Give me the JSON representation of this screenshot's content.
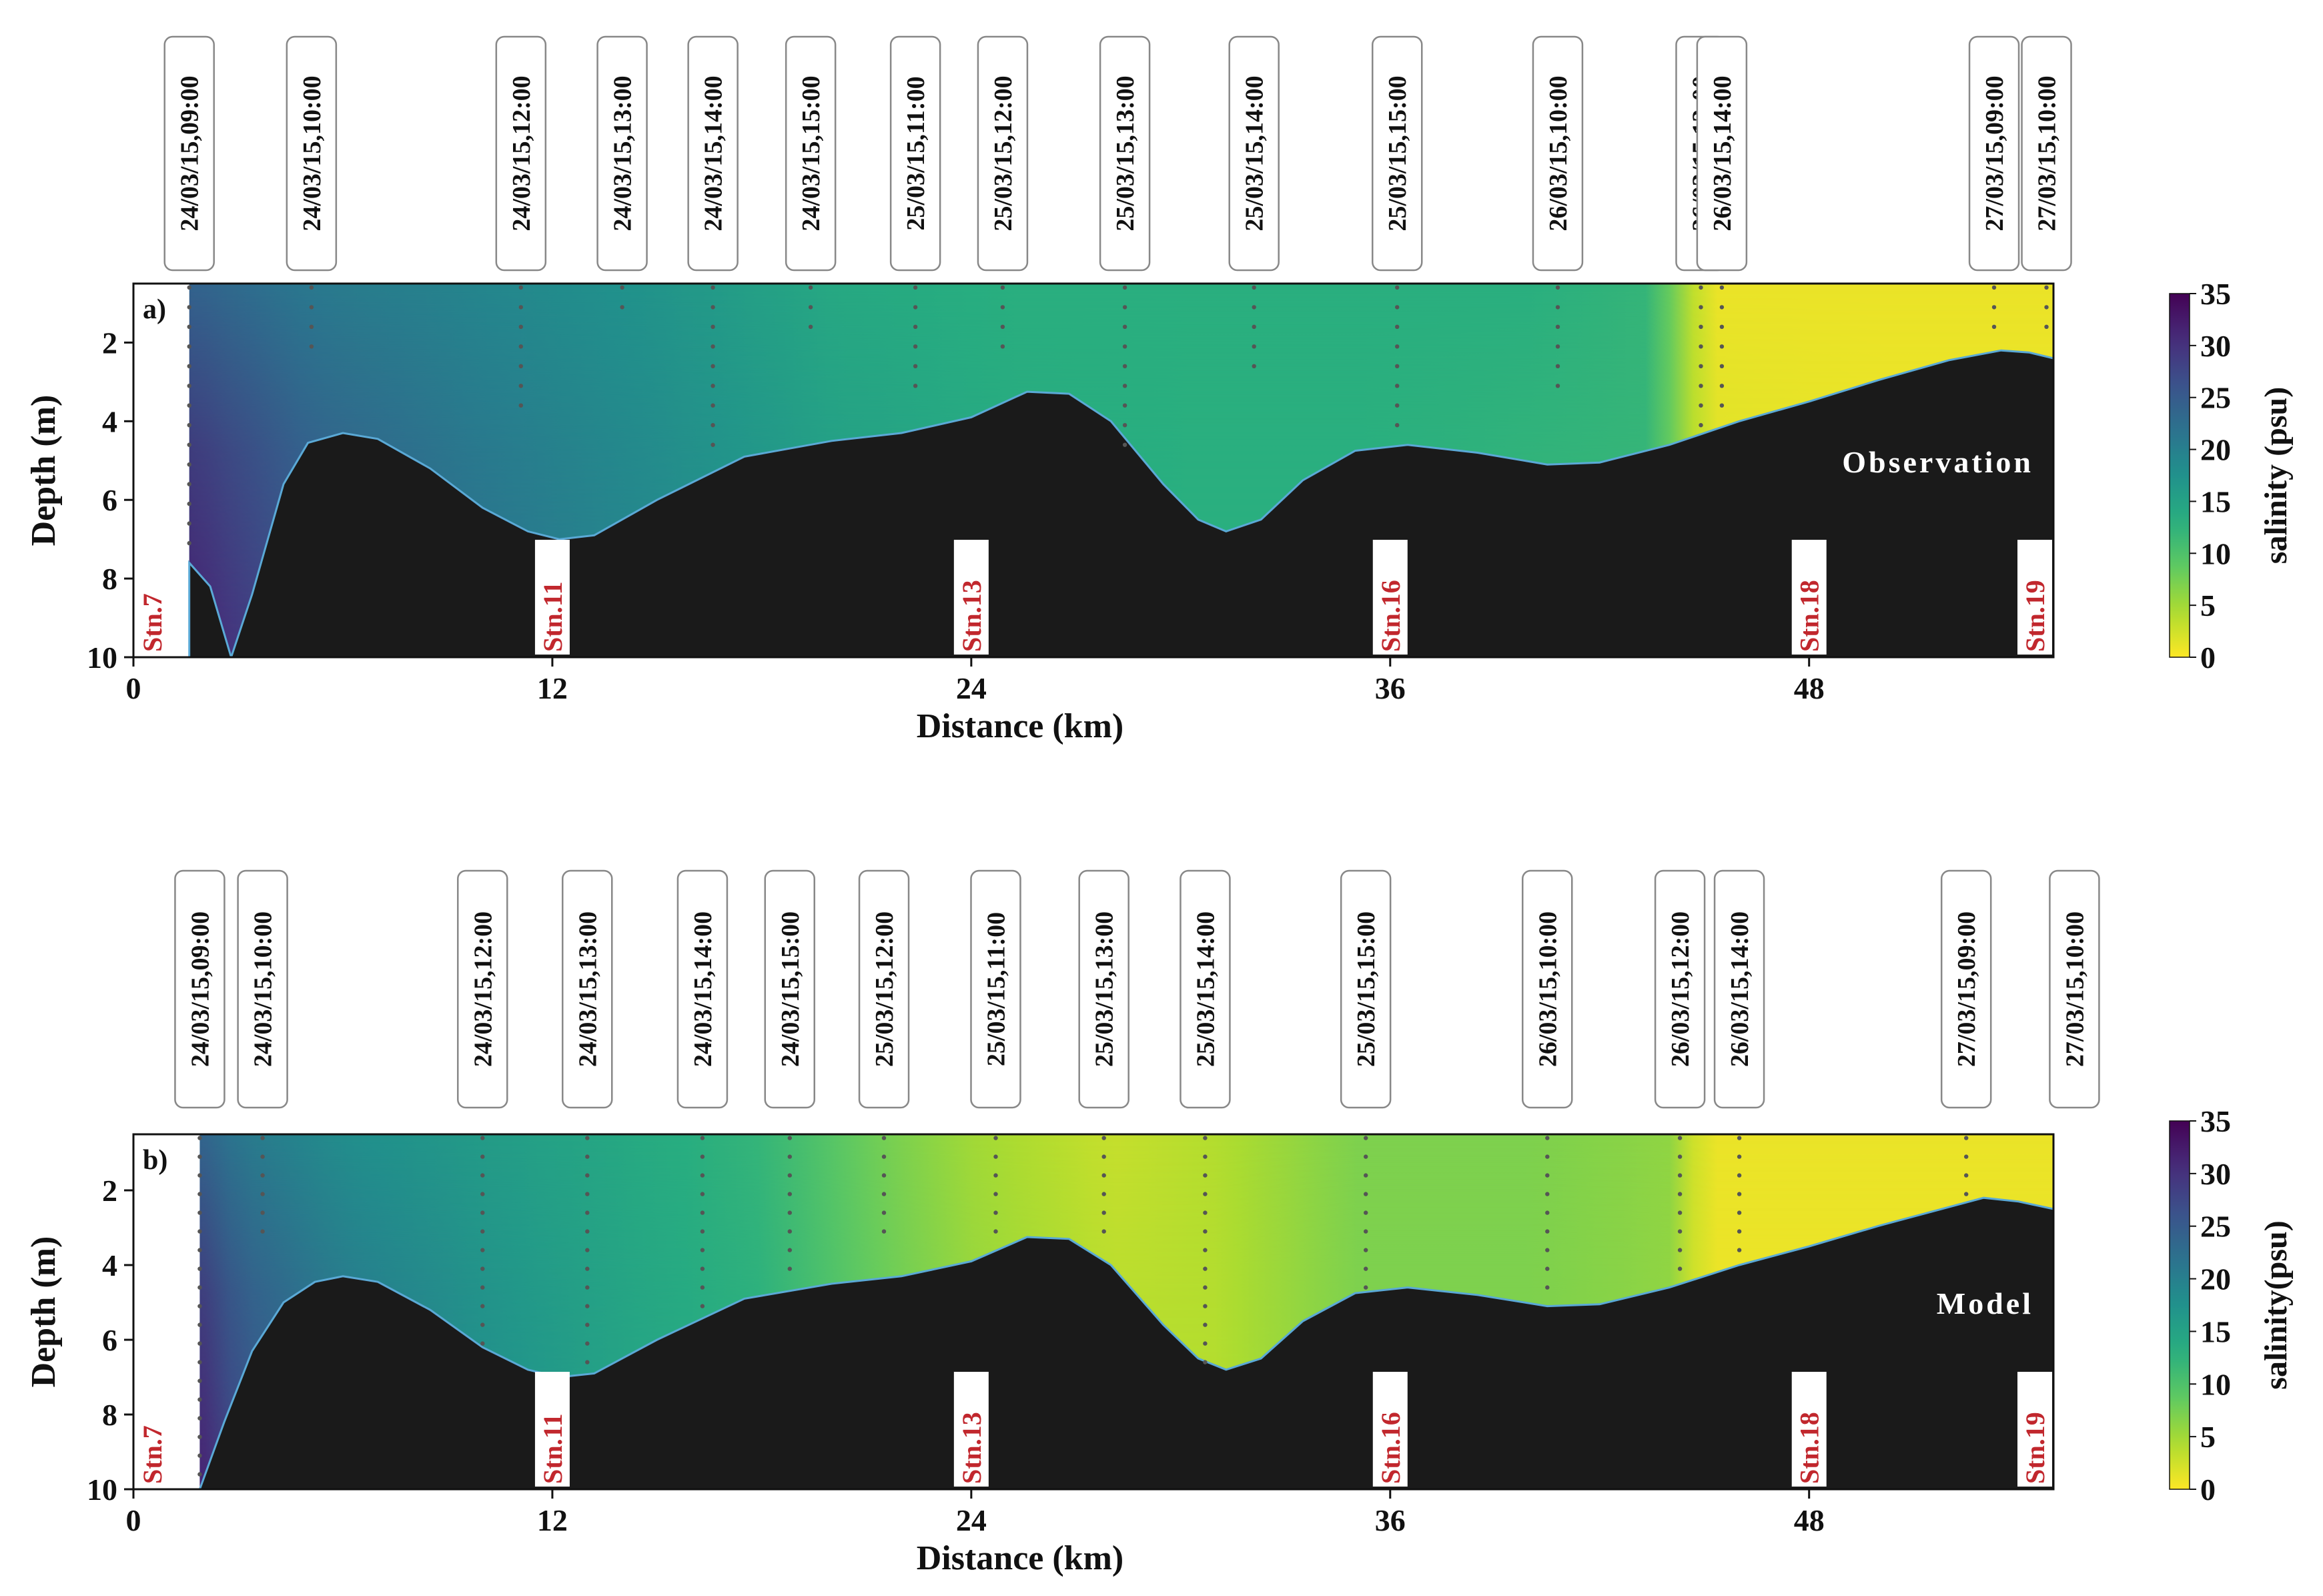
{
  "colors": {
    "bathymetry": "#1a1a1a",
    "station_text": "#c1272d",
    "colormap": [
      "#440154",
      "#472d7b",
      "#3b528b",
      "#2c728e",
      "#21918c",
      "#28ae80",
      "#5ec962",
      "#addc30",
      "#fde725"
    ]
  },
  "chart_data": [
    {
      "type": "heatmap",
      "panel": "a)",
      "annotation": "Observation",
      "xlabel": "Distance (km)",
      "ylabel": "Depth (m)",
      "xlim": [
        0,
        55
      ],
      "ylim": [
        10,
        0.5
      ],
      "xticks": [
        0,
        12,
        24,
        36,
        48
      ],
      "yticks": [
        2,
        4,
        6,
        8,
        10
      ],
      "colorbar": {
        "label": "salinity (psu)",
        "range": [
          0,
          35
        ],
        "ticks": [
          0,
          5,
          10,
          15,
          20,
          25,
          30,
          35
        ],
        "colormap": "viridis_r"
      },
      "stations": [
        {
          "label": "Stn.7",
          "x": 0.5
        },
        {
          "label": "Stn.11",
          "x": 12
        },
        {
          "label": "Stn.13",
          "x": 24
        },
        {
          "label": "Stn.16",
          "x": 36
        },
        {
          "label": "Stn.18",
          "x": 48
        },
        {
          "label": "Stn.19",
          "x": 54.8
        }
      ],
      "profiles": [
        {
          "time": "24/03/15,09:00",
          "x": 1.6,
          "depth": 7.5
        },
        {
          "time": "24/03/15,10:00",
          "x": 5.1,
          "depth": 2.2
        },
        {
          "time": "24/03/15,12:00",
          "x": 11.1,
          "depth": 3.6
        },
        {
          "time": "24/03/15,13:00",
          "x": 14.0,
          "depth": 1.2
        },
        {
          "time": "24/03/15,14:00",
          "x": 16.6,
          "depth": 4.9
        },
        {
          "time": "24/03/15,15:00",
          "x": 19.4,
          "depth": 2.0
        },
        {
          "time": "25/03/15,11:00",
          "x": 22.4,
          "depth": 3.2
        },
        {
          "time": "25/03/15,12:00",
          "x": 24.9,
          "depth": 2.5
        },
        {
          "time": "25/03/15,13:00",
          "x": 28.4,
          "depth": 4.6
        },
        {
          "time": "25/03/15,14:00",
          "x": 32.1,
          "depth": 3.0
        },
        {
          "time": "25/03/15,15:00",
          "x": 36.2,
          "depth": 4.4
        },
        {
          "time": "26/03/15,10:00",
          "x": 40.8,
          "depth": 3.2
        },
        {
          "time": "26/03/15,12:00",
          "x": 44.9,
          "depth": 4.2
        },
        {
          "time": "26/03/15,14:00",
          "x": 45.5,
          "depth": 3.6
        },
        {
          "time": "27/03/15,09:00",
          "x": 53.3,
          "depth": 2.0
        },
        {
          "time": "27/03/15,10:00",
          "x": 54.8,
          "depth": 2.0
        }
      ],
      "seabed": [
        [
          1.6,
          7.6
        ],
        [
          2.2,
          8.2
        ],
        [
          2.8,
          10
        ],
        [
          3.4,
          8.4
        ],
        [
          4.3,
          5.6
        ],
        [
          5.0,
          4.55
        ],
        [
          6.0,
          4.3
        ],
        [
          7.0,
          4.45
        ],
        [
          8.5,
          5.2
        ],
        [
          10.0,
          6.2
        ],
        [
          11.3,
          6.8
        ],
        [
          12.2,
          7.0
        ],
        [
          13.2,
          6.9
        ],
        [
          15.0,
          6.0
        ],
        [
          17.5,
          4.9
        ],
        [
          20.0,
          4.5
        ],
        [
          22.0,
          4.3
        ],
        [
          24.0,
          3.9
        ],
        [
          25.6,
          3.25
        ],
        [
          26.8,
          3.3
        ],
        [
          28.0,
          4.0
        ],
        [
          29.5,
          5.6
        ],
        [
          30.5,
          6.5
        ],
        [
          31.3,
          6.8
        ],
        [
          32.3,
          6.5
        ],
        [
          33.5,
          5.5
        ],
        [
          35.0,
          4.75
        ],
        [
          36.5,
          4.6
        ],
        [
          38.5,
          4.8
        ],
        [
          40.5,
          5.1
        ],
        [
          42.0,
          5.05
        ],
        [
          44.0,
          4.6
        ],
        [
          46.0,
          4.0
        ],
        [
          48.0,
          3.5
        ],
        [
          50.0,
          2.95
        ],
        [
          52.0,
          2.45
        ],
        [
          53.5,
          2.2
        ],
        [
          54.3,
          2.25
        ],
        [
          55,
          2.4
        ]
      ],
      "salinity_field": {
        "x": [
          1.6,
          5,
          10,
          15,
          20,
          25,
          30,
          35,
          40,
          43.5,
          45,
          50,
          55
        ],
        "surface": [
          24,
          21,
          19,
          17,
          14,
          13,
          13,
          13,
          13,
          12,
          1,
          1,
          1
        ],
        "deep": [
          32,
          26,
          22,
          19,
          16,
          14,
          13,
          13,
          12,
          12,
          2,
          1,
          1
        ]
      }
    },
    {
      "type": "heatmap",
      "panel": "b)",
      "annotation": "Model",
      "xlabel": "Distance (km)",
      "ylabel": "Depth (m)",
      "xlim": [
        0,
        55
      ],
      "ylim": [
        10,
        0.5
      ],
      "xticks": [
        0,
        12,
        24,
        36,
        48
      ],
      "yticks": [
        2,
        4,
        6,
        8,
        10
      ],
      "colorbar": {
        "label": "salinity(psu)",
        "range": [
          0,
          35
        ],
        "ticks": [
          0,
          5,
          10,
          15,
          20,
          25,
          30,
          35
        ],
        "colormap": "viridis_r"
      },
      "stations": [
        {
          "label": "Stn.7",
          "x": 0.5
        },
        {
          "label": "Stn.11",
          "x": 12
        },
        {
          "label": "Stn.13",
          "x": 24
        },
        {
          "label": "Stn.16",
          "x": 36
        },
        {
          "label": "Stn.18",
          "x": 48
        },
        {
          "label": "Stn.19",
          "x": 54.8
        }
      ],
      "profiles": [
        {
          "time": "24/03/15,09:00",
          "x": 1.9,
          "depth": 10
        },
        {
          "time": "24/03/15,10:00",
          "x": 3.7,
          "depth": 3.3
        },
        {
          "time": "24/03/15,12:00",
          "x": 10.0,
          "depth": 6.2
        },
        {
          "time": "24/03/15,13:00",
          "x": 13.0,
          "depth": 6.8
        },
        {
          "time": "24/03/15,14:00",
          "x": 16.3,
          "depth": 5.1
        },
        {
          "time": "24/03/15,15:00",
          "x": 18.8,
          "depth": 4.5
        },
        {
          "time": "25/03/15,12:00",
          "x": 21.5,
          "depth": 3.2
        },
        {
          "time": "25/03/15,11:00",
          "x": 24.7,
          "depth": 3.5
        },
        {
          "time": "25/03/15,13:00",
          "x": 27.8,
          "depth": 3.3
        },
        {
          "time": "25/03/15,14:00",
          "x": 30.7,
          "depth": 6.6
        },
        {
          "time": "25/03/15,15:00",
          "x": 35.3,
          "depth": 4.6
        },
        {
          "time": "26/03/15,10:00",
          "x": 40.5,
          "depth": 5.0
        },
        {
          "time": "26/03/15,12:00",
          "x": 44.3,
          "depth": 4.4
        },
        {
          "time": "26/03/15,14:00",
          "x": 46.0,
          "depth": 3.7
        },
        {
          "time": "27/03/15,09:00",
          "x": 52.5,
          "depth": 2.1
        },
        {
          "time": "27/03/15,10:00",
          "x": 55.6,
          "depth": 2.5
        }
      ],
      "seabed": [
        [
          1.9,
          10
        ],
        [
          2.6,
          8.2
        ],
        [
          3.4,
          6.3
        ],
        [
          4.3,
          5.0
        ],
        [
          5.2,
          4.45
        ],
        [
          6.0,
          4.3
        ],
        [
          7.0,
          4.45
        ],
        [
          8.5,
          5.2
        ],
        [
          10.0,
          6.2
        ],
        [
          11.3,
          6.8
        ],
        [
          12.2,
          7.0
        ],
        [
          13.2,
          6.9
        ],
        [
          15.0,
          6.0
        ],
        [
          17.5,
          4.9
        ],
        [
          20.0,
          4.5
        ],
        [
          22.0,
          4.3
        ],
        [
          24.0,
          3.9
        ],
        [
          25.6,
          3.25
        ],
        [
          26.8,
          3.3
        ],
        [
          28.0,
          4.0
        ],
        [
          29.5,
          5.6
        ],
        [
          30.5,
          6.5
        ],
        [
          31.3,
          6.8
        ],
        [
          32.3,
          6.5
        ],
        [
          33.5,
          5.5
        ],
        [
          35.0,
          4.75
        ],
        [
          36.5,
          4.6
        ],
        [
          38.5,
          4.8
        ],
        [
          40.5,
          5.1
        ],
        [
          42.0,
          5.05
        ],
        [
          44.0,
          4.6
        ],
        [
          46.0,
          4.0
        ],
        [
          48.0,
          3.5
        ],
        [
          50.0,
          2.95
        ],
        [
          52.0,
          2.45
        ],
        [
          53.0,
          2.2
        ],
        [
          54.0,
          2.3
        ],
        [
          55.5,
          2.6
        ],
        [
          56.2,
          2.9
        ]
      ],
      "salinity_field": {
        "x": [
          1.9,
          3,
          6,
          10,
          14,
          18,
          21,
          24,
          28,
          31,
          35,
          40,
          44,
          45,
          50,
          56.2
        ],
        "surface": [
          24,
          21,
          18,
          16,
          14,
          12,
          8,
          5,
          3,
          4,
          7,
          7,
          6,
          1,
          1,
          1
        ],
        "deep": [
          32,
          27,
          22,
          18,
          15,
          13,
          9,
          6,
          4,
          4,
          7,
          7,
          6,
          1,
          1,
          1
        ]
      }
    }
  ]
}
